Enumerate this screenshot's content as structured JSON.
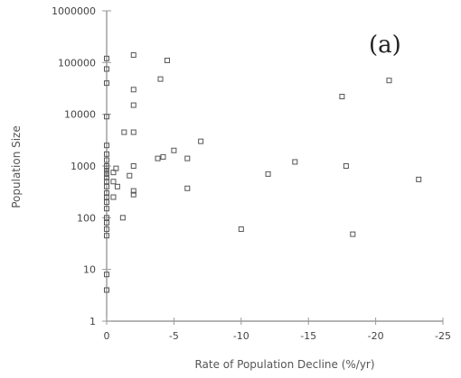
{
  "chart_data": {
    "type": "scatter",
    "panel_label": "(a)",
    "xlabel": "Rate of Population Decline (%/yr)",
    "ylabel": "Population Size",
    "xlim": [
      0,
      -25
    ],
    "ylim": [
      1,
      1000000
    ],
    "yscale": "log",
    "x_ticks": [
      0,
      -5,
      -10,
      -15,
      -20,
      -25
    ],
    "x_tick_labels": [
      "0",
      "-5",
      "-10",
      "-15",
      "-20",
      "-25"
    ],
    "y_ticks": [
      1,
      10,
      100,
      1000,
      10000,
      100000,
      1000000
    ],
    "y_tick_labels": [
      "1",
      "10",
      "100",
      "1000",
      "10000",
      "100000",
      "1000000"
    ],
    "grid": false,
    "points": [
      {
        "x": 0,
        "y": 4
      },
      {
        "x": 0,
        "y": 8
      },
      {
        "x": 0,
        "y": 45
      },
      {
        "x": 0,
        "y": 60
      },
      {
        "x": 0,
        "y": 80
      },
      {
        "x": 0,
        "y": 100
      },
      {
        "x": 0,
        "y": 150
      },
      {
        "x": 0,
        "y": 200
      },
      {
        "x": 0,
        "y": 250
      },
      {
        "x": 0,
        "y": 300
      },
      {
        "x": 0,
        "y": 400
      },
      {
        "x": 0,
        "y": 500
      },
      {
        "x": 0,
        "y": 600
      },
      {
        "x": 0,
        "y": 700
      },
      {
        "x": 0,
        "y": 800
      },
      {
        "x": 0,
        "y": 900
      },
      {
        "x": 0,
        "y": 1000
      },
      {
        "x": 0,
        "y": 1300
      },
      {
        "x": 0,
        "y": 1700
      },
      {
        "x": 0,
        "y": 2500
      },
      {
        "x": 0,
        "y": 9000
      },
      {
        "x": 0,
        "y": 40000
      },
      {
        "x": 0,
        "y": 75000
      },
      {
        "x": 0,
        "y": 120000
      },
      {
        "x": -0.5,
        "y": 250
      },
      {
        "x": -0.5,
        "y": 500
      },
      {
        "x": -0.5,
        "y": 750
      },
      {
        "x": -0.7,
        "y": 900
      },
      {
        "x": -0.8,
        "y": 400
      },
      {
        "x": -1.2,
        "y": 100
      },
      {
        "x": -1.3,
        "y": 4500
      },
      {
        "x": -1.7,
        "y": 650
      },
      {
        "x": -2,
        "y": 140000
      },
      {
        "x": -2,
        "y": 30000
      },
      {
        "x": -2,
        "y": 15000
      },
      {
        "x": -2,
        "y": 4500
      },
      {
        "x": -2,
        "y": 1000
      },
      {
        "x": -2,
        "y": 330
      },
      {
        "x": -2,
        "y": 280
      },
      {
        "x": -3.8,
        "y": 1400
      },
      {
        "x": -4,
        "y": 48000
      },
      {
        "x": -4.2,
        "y": 1500
      },
      {
        "x": -4.5,
        "y": 110000
      },
      {
        "x": -5,
        "y": 2000
      },
      {
        "x": -6,
        "y": 1400
      },
      {
        "x": -6,
        "y": 370
      },
      {
        "x": -7,
        "y": 3000
      },
      {
        "x": -10,
        "y": 60
      },
      {
        "x": -12,
        "y": 700
      },
      {
        "x": -14,
        "y": 1200
      },
      {
        "x": -17.5,
        "y": 22000
      },
      {
        "x": -17.8,
        "y": 1000
      },
      {
        "x": -18.3,
        "y": 48
      },
      {
        "x": -21,
        "y": 45000
      },
      {
        "x": -23.2,
        "y": 550
      }
    ]
  }
}
